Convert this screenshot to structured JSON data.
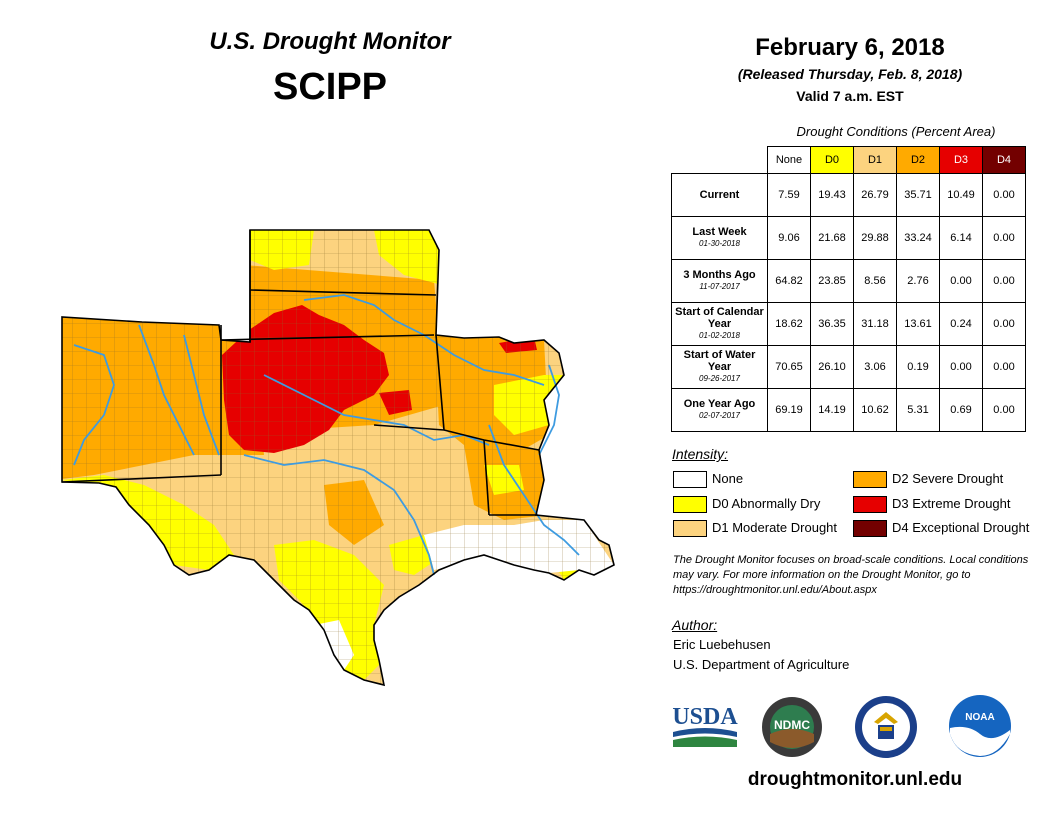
{
  "header": {
    "brand": "U.S. Drought Monitor",
    "region": "SCIPP",
    "date": "February 6, 2018",
    "released": "(Released Thursday, Feb. 8, 2018)",
    "valid": "Valid 7 a.m. EST"
  },
  "table": {
    "title": "Drought Conditions (Percent Area)",
    "columns": [
      {
        "label": "None",
        "color": "#ffffff",
        "text": "#000000"
      },
      {
        "label": "D0",
        "color": "#ffff00",
        "text": "#000000"
      },
      {
        "label": "D1",
        "color": "#fcd37f",
        "text": "#000000"
      },
      {
        "label": "D2",
        "color": "#ffaa00",
        "text": "#000000"
      },
      {
        "label": "D3",
        "color": "#e60000",
        "text": "#ffffff"
      },
      {
        "label": "D4",
        "color": "#730000",
        "text": "#ffffff"
      }
    ],
    "rows": [
      {
        "label": "Current",
        "sub": "",
        "values": [
          "7.59",
          "19.43",
          "26.79",
          "35.71",
          "10.49",
          "0.00"
        ]
      },
      {
        "label": "Last Week",
        "sub": "01-30-2018",
        "values": [
          "9.06",
          "21.68",
          "29.88",
          "33.24",
          "6.14",
          "0.00"
        ]
      },
      {
        "label": "3 Months Ago",
        "sub": "11-07-2017",
        "values": [
          "64.82",
          "23.85",
          "8.56",
          "2.76",
          "0.00",
          "0.00"
        ]
      },
      {
        "label": "Start of Calendar Year",
        "sub": "01-02-2018",
        "values": [
          "18.62",
          "36.35",
          "31.18",
          "13.61",
          "0.24",
          "0.00"
        ]
      },
      {
        "label": "Start of Water Year",
        "sub": "09-26-2017",
        "values": [
          "70.65",
          "26.10",
          "3.06",
          "0.19",
          "0.00",
          "0.00"
        ]
      },
      {
        "label": "One Year Ago",
        "sub": "02-07-2017",
        "values": [
          "69.19",
          "14.19",
          "10.62",
          "5.31",
          "0.69",
          "0.00"
        ]
      }
    ]
  },
  "legend": {
    "title": "Intensity:",
    "items": [
      {
        "label": "None",
        "color": "#ffffff"
      },
      {
        "label": "D0 Abnormally Dry",
        "color": "#ffff00"
      },
      {
        "label": "D1 Moderate Drought",
        "color": "#fcd37f"
      },
      {
        "label": "D2 Severe Drought",
        "color": "#ffaa00"
      },
      {
        "label": "D3 Extreme Drought",
        "color": "#e60000"
      },
      {
        "label": "D4 Exceptional Drought",
        "color": "#730000"
      }
    ]
  },
  "note": "The Drought Monitor focuses on broad-scale conditions. Local conditions may vary. For more information on the Drought Monitor, go to https://droughtmonitor.unl.edu/About.aspx",
  "author": {
    "label": "Author:",
    "name": "Eric Luebehusen",
    "org": "U.S. Department of Agriculture"
  },
  "logos": {
    "usda": "USDA",
    "ndmc": "NDMC",
    "noaa": "NOAA"
  },
  "footer_url": "droughtmonitor.unl.edu",
  "colors": {
    "d0": "#ffff00",
    "d1": "#fcd37f",
    "d2": "#ffaa00",
    "d3": "#e60000",
    "d4": "#730000",
    "river": "#3e9be0",
    "county": "#8a6d2c",
    "state": "#000000"
  }
}
